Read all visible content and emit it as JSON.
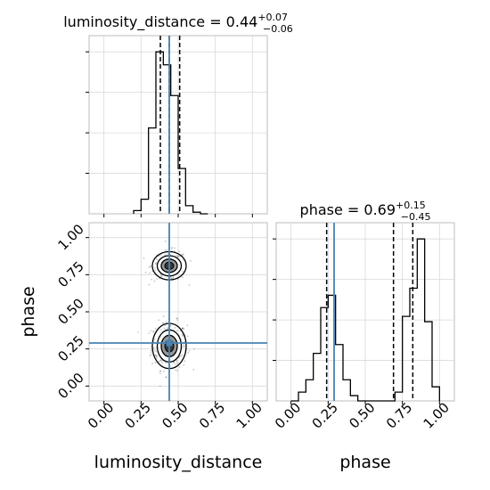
{
  "chart_data": {
    "type": "corner",
    "parameters": [
      "luminosity_distance",
      "phase"
    ],
    "truth_color": "#4682b4",
    "panels": [
      {
        "kind": "hist",
        "param": "luminosity_distance",
        "title": {
          "main": "luminosity_distance = 0.44",
          "plus": "+0.07",
          "minus": "−0.06"
        },
        "xlim": [
          -0.1,
          1.1
        ],
        "bin_edges": [
          0.2,
          0.25,
          0.3,
          0.35,
          0.4,
          0.45,
          0.5,
          0.55,
          0.6,
          0.65,
          0.7
        ],
        "counts": [
          0.02,
          0.09,
          0.53,
          1.0,
          0.92,
          0.73,
          0.28,
          0.05,
          0.01,
          0
        ],
        "quantiles": [
          0.38,
          0.44,
          0.51
        ],
        "truth": 0.44
      },
      {
        "kind": "hist",
        "param": "phase",
        "title": {
          "main": "phase = 0.69",
          "plus": "+0.15",
          "minus": "−0.45"
        },
        "xlim": [
          -0.1,
          1.1
        ],
        "bin_edges": [
          0.0,
          0.05,
          0.1,
          0.15,
          0.2,
          0.25,
          0.3,
          0.35,
          0.4,
          0.45,
          0.5,
          0.55,
          0.6,
          0.65,
          0.7,
          0.75,
          0.8,
          0.85,
          0.9,
          0.95,
          1.0
        ],
        "counts": [
          0,
          0.05,
          0.12,
          0.27,
          0.53,
          0.6,
          0.32,
          0.12,
          0.03,
          0,
          0,
          0,
          0,
          0,
          0.05,
          0.48,
          0.64,
          0.92,
          0.45,
          0.08
        ],
        "quantiles": [
          0.24,
          0.69,
          0.82
        ],
        "truth": 0.29
      },
      {
        "kind": "2d",
        "x_param": "luminosity_distance",
        "y_param": "phase",
        "xlim": [
          -0.1,
          1.1
        ],
        "ylim": [
          -0.1,
          1.1
        ],
        "modes": [
          {
            "x": 0.44,
            "y": 0.27,
            "sx": 0.06,
            "sy": 0.08,
            "weight": 0.6
          },
          {
            "x": 0.44,
            "y": 0.81,
            "sx": 0.06,
            "sy": 0.05,
            "weight": 0.4
          }
        ],
        "truth": {
          "x": 0.44,
          "y": 0.29
        }
      }
    ],
    "ticks": {
      "luminosity_distance": [
        "0.00",
        "0.25",
        "0.50",
        "0.75",
        "1.00"
      ],
      "phase": [
        "0.00",
        "0.25",
        "0.50",
        "0.75",
        "1.00"
      ]
    },
    "xlabels": [
      "luminosity_distance",
      "phase"
    ],
    "ylabels": [
      "phase"
    ]
  }
}
